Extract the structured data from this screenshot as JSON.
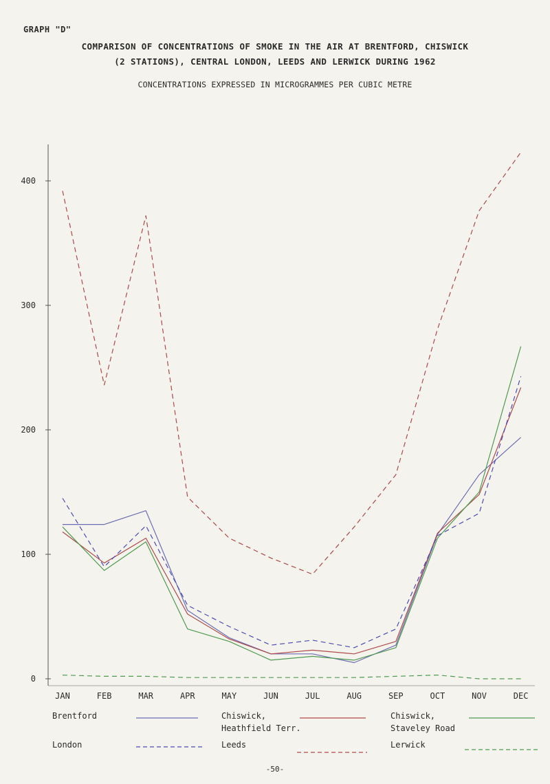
{
  "page": {
    "graph_label": "GRAPH \"D\"",
    "title_line1": "COMPARISON OF CONCENTRATIONS OF SMOKE IN THE AIR AT BRENTFORD, CHISWICK",
    "title_line2": "(2 STATIONS), CENTRAL LONDON, LEEDS AND LERWICK DURING 1962",
    "subtitle": "CONCENTRATIONS EXPRESSED IN MICROGRAMMES PER CUBIC METRE",
    "page_number": "-50-"
  },
  "legend": {
    "brentford": "Brentford",
    "chiswick_heathfield_1": "Chiswick,",
    "chiswick_heathfield_2": "Heathfield Terr.",
    "chiswick_staveley_1": "Chiswick,",
    "chiswick_staveley_2": "Staveley Road",
    "london": "London",
    "leeds": "Leeds",
    "lerwick": "Lerwick"
  },
  "chart_data": {
    "type": "line",
    "title": "COMPARISON OF CONCENTRATIONS OF SMOKE IN THE AIR AT BRENTFORD, CHISWICK (2 STATIONS), CENTRAL LONDON, LEEDS AND LERWICK DURING 1962",
    "subtitle": "CONCENTRATIONS EXPRESSED IN MICROGRAMMES PER CUBIC METRE",
    "xlabel": "",
    "ylabel": "",
    "categories": [
      "JAN",
      "FEB",
      "MAR",
      "APR",
      "MAY",
      "JUN",
      "JUL",
      "AUG",
      "SEP",
      "OCT",
      "NOV",
      "DEC"
    ],
    "ylim": [
      0,
      430
    ],
    "yticks": [
      0,
      100,
      200,
      300,
      400
    ],
    "grid": false,
    "legend_position": "bottom",
    "series": [
      {
        "name": "Brentford",
        "color": "#6c6cb4",
        "dash": "solid",
        "values": [
          124,
          124,
          135,
          55,
          33,
          20,
          20,
          13,
          27,
          116,
          164,
          194
        ]
      },
      {
        "name": "Chiswick, Heathfield Terr.",
        "color": "#b04a4a",
        "dash": "solid",
        "values": [
          118,
          93,
          113,
          52,
          32,
          20,
          23,
          20,
          30,
          117,
          148,
          234
        ]
      },
      {
        "name": "Chiswick, Staveley Road",
        "color": "#4e9a4e",
        "dash": "solid",
        "values": [
          122,
          87,
          110,
          40,
          30,
          15,
          18,
          15,
          25,
          113,
          150,
          267
        ]
      },
      {
        "name": "London",
        "color": "#4a4ab8",
        "dash": "dashed",
        "values": [
          145,
          90,
          123,
          59,
          42,
          27,
          31,
          25,
          40,
          115,
          133,
          243
        ]
      },
      {
        "name": "Leeds",
        "color": "#b04848",
        "dash": "dashed",
        "values": [
          392,
          236,
          372,
          146,
          113,
          97,
          84,
          122,
          164,
          281,
          376,
          423
        ]
      },
      {
        "name": "Lerwick",
        "color": "#4e9a4e",
        "dash": "dashed",
        "values": [
          3,
          2,
          2,
          1,
          1,
          1,
          1,
          1,
          2,
          3,
          0,
          0
        ]
      }
    ]
  }
}
